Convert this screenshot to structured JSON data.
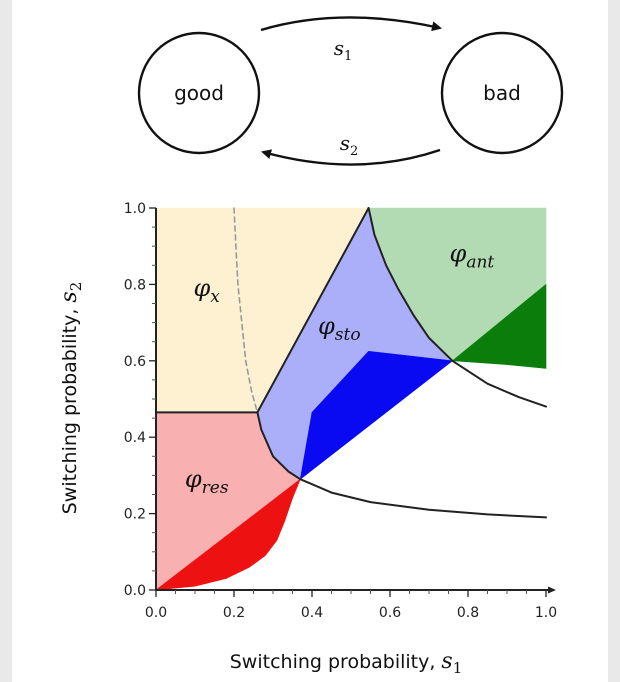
{
  "diagram": {
    "states": [
      {
        "id": "good",
        "label": "good"
      },
      {
        "id": "bad",
        "label": "bad"
      }
    ],
    "transitions": [
      {
        "from": "good",
        "to": "bad",
        "symbol": "s",
        "subscript": "1"
      },
      {
        "from": "bad",
        "to": "good",
        "symbol": "s",
        "subscript": "2"
      }
    ]
  },
  "chart_data": {
    "type": "area",
    "xlabel": {
      "text": "Switching probability,",
      "symbol": "s",
      "subscript": "1"
    },
    "ylabel": {
      "text": "Switching probability,",
      "symbol": "s",
      "subscript": "2"
    },
    "xlim": [
      0,
      1
    ],
    "ylim": [
      0,
      1
    ],
    "x_ticks": [
      "0.0",
      "0.2",
      "0.4",
      "0.6",
      "0.8",
      "1.0"
    ],
    "y_ticks": [
      "0.0",
      "0.2",
      "0.4",
      "0.6",
      "0.8",
      "1.0"
    ],
    "regions": [
      {
        "id": "phi_x",
        "symbol": "φ",
        "subscript": "x",
        "color": "#fdf1d2",
        "polygon": [
          [
            0,
            0.465
          ],
          [
            0,
            1
          ],
          [
            0.545,
            1
          ],
          [
            0.26,
            0.465
          ]
        ],
        "label_at": [
          0.13,
          0.77
        ]
      },
      {
        "id": "phi_res",
        "symbol": "φ",
        "subscript": "res",
        "color": "#f8b0b0",
        "polygon": [
          [
            0,
            0
          ],
          [
            0,
            0.465
          ],
          [
            0.26,
            0.465
          ],
          [
            0.27,
            0.42
          ],
          [
            0.3,
            0.35
          ],
          [
            0.34,
            0.31
          ],
          [
            0.37,
            0.29
          ]
        ],
        "label_at": [
          0.13,
          0.27
        ]
      },
      {
        "id": "phi_res_dark",
        "color": "#ee1111",
        "polygon": [
          [
            0,
            0
          ],
          [
            0.37,
            0.29
          ],
          [
            0.35,
            0.24
          ],
          [
            0.33,
            0.18
          ],
          [
            0.31,
            0.13
          ],
          [
            0.28,
            0.09
          ],
          [
            0.24,
            0.06
          ],
          [
            0.18,
            0.03
          ],
          [
            0.1,
            0.01
          ]
        ]
      },
      {
        "id": "phi_sto",
        "symbol": "φ",
        "subscript": "sto",
        "color": "#abaffa",
        "polygon": [
          [
            0.26,
            0.465
          ],
          [
            0.545,
            1
          ],
          [
            0.56,
            0.93
          ],
          [
            0.59,
            0.85
          ],
          [
            0.62,
            0.79
          ],
          [
            0.66,
            0.72
          ],
          [
            0.7,
            0.66
          ],
          [
            0.76,
            0.6
          ],
          [
            0.37,
            0.29
          ],
          [
            0.34,
            0.31
          ],
          [
            0.3,
            0.35
          ],
          [
            0.27,
            0.42
          ]
        ],
        "label_at": [
          0.47,
          0.67
        ]
      },
      {
        "id": "phi_sto_dark",
        "color": "#0a0af2",
        "polygon": [
          [
            0.37,
            0.29
          ],
          [
            0.4,
            0.465
          ],
          [
            0.545,
            0.625
          ],
          [
            0.76,
            0.6
          ]
        ]
      },
      {
        "id": "phi_ant",
        "symbol": "φ",
        "subscript": "ant",
        "color": "#b3dbb3",
        "polygon": [
          [
            0.545,
            1
          ],
          [
            1,
            1
          ],
          [
            1,
            0.8
          ],
          [
            0.76,
            0.6
          ],
          [
            0.7,
            0.66
          ],
          [
            0.66,
            0.72
          ],
          [
            0.62,
            0.79
          ],
          [
            0.59,
            0.85
          ],
          [
            0.56,
            0.93
          ]
        ],
        "label_at": [
          0.81,
          0.86
        ]
      },
      {
        "id": "phi_ant_dark",
        "color": "#0b7d0b",
        "polygon": [
          [
            0.76,
            0.6
          ],
          [
            1,
            0.8
          ],
          [
            1,
            0.58
          ],
          [
            0.9,
            0.59
          ]
        ]
      }
    ],
    "boundaries": [
      {
        "style": "solid",
        "points": [
          [
            0,
            0.465
          ],
          [
            0.26,
            0.465
          ]
        ]
      },
      {
        "style": "solid",
        "points": [
          [
            0.26,
            0.465
          ],
          [
            0.545,
            1
          ]
        ]
      },
      {
        "style": "solid",
        "points": [
          [
            0.26,
            0.465
          ],
          [
            0.27,
            0.42
          ],
          [
            0.3,
            0.35
          ],
          [
            0.34,
            0.31
          ],
          [
            0.37,
            0.29
          ]
        ]
      },
      {
        "style": "solid",
        "points": [
          [
            0.37,
            0.29
          ],
          [
            0.45,
            0.255
          ],
          [
            0.55,
            0.23
          ],
          [
            0.7,
            0.21
          ],
          [
            0.85,
            0.198
          ],
          [
            1,
            0.19
          ]
        ]
      },
      {
        "style": "solid",
        "points": [
          [
            0.545,
            1
          ],
          [
            0.56,
            0.93
          ],
          [
            0.59,
            0.85
          ],
          [
            0.62,
            0.79
          ],
          [
            0.66,
            0.72
          ],
          [
            0.7,
            0.66
          ],
          [
            0.76,
            0.6
          ],
          [
            0.85,
            0.54
          ],
          [
            0.93,
            0.505
          ],
          [
            1,
            0.48
          ]
        ]
      },
      {
        "style": "dashed",
        "points": [
          [
            0.2,
            1
          ],
          [
            0.205,
            0.9
          ],
          [
            0.21,
            0.8
          ],
          [
            0.22,
            0.7
          ],
          [
            0.23,
            0.6
          ],
          [
            0.245,
            0.52
          ],
          [
            0.26,
            0.465
          ]
        ]
      }
    ]
  }
}
